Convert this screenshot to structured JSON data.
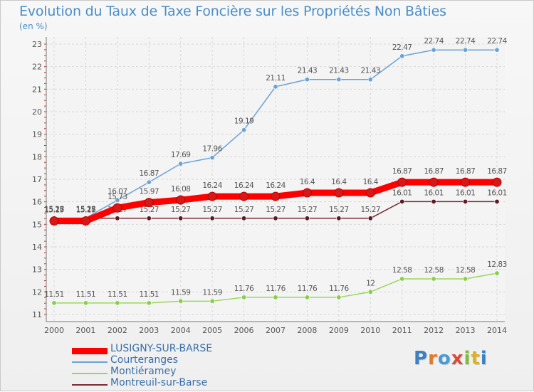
{
  "header": {
    "title": "Evolution du Taux de Taxe Foncière sur les Propriétés Non Bâties",
    "subtitle": "(en %)"
  },
  "brand": {
    "logo_text": "Proxiti",
    "colors": [
      "#3b7fc4",
      "#e07a2a",
      "#4a9ad6",
      "#d94a3a",
      "#7cbf3a",
      "#e0b020",
      "#3b7fc4"
    ]
  },
  "chart_data": {
    "type": "line",
    "x": [
      2000,
      2001,
      2002,
      2003,
      2004,
      2005,
      2006,
      2007,
      2008,
      2009,
      2010,
      2011,
      2012,
      2013,
      2014
    ],
    "ylim": [
      11,
      23
    ],
    "y_ticks": [
      11,
      12,
      13,
      14,
      15,
      16,
      17,
      18,
      19,
      20,
      21,
      22,
      23
    ],
    "grid": true,
    "legend_position": "bottom-left",
    "series": [
      {
        "name": "LUSIGNY-SUR-BARSE",
        "color": "#ff0000",
        "marker": "#d81818",
        "thick": true,
        "values": [
          15.15,
          15.15,
          15.73,
          15.97,
          16.08,
          16.24,
          16.24,
          16.24,
          16.4,
          16.4,
          16.4,
          16.87,
          16.87,
          16.87,
          16.87
        ],
        "labels": [
          "15.15",
          "15.15",
          "15.73",
          "15.97",
          "16.08",
          "16.24",
          "16.24",
          "16.24",
          "16.4",
          "16.4",
          "16.4",
          "16.87",
          "16.87",
          "16.87",
          "16.87"
        ]
      },
      {
        "name": "Courteranges",
        "color": "#6ba3d6",
        "marker": "#6ba3d6",
        "thick": false,
        "values": [
          15.28,
          15.28,
          16.07,
          16.87,
          17.69,
          17.96,
          19.19,
          21.11,
          21.43,
          21.43,
          21.43,
          22.47,
          22.74,
          22.74,
          22.74
        ],
        "labels": [
          "15.28",
          "15.28",
          "16.07",
          "16.87",
          "17.69",
          "17.96",
          "19.19",
          "21.11",
          "21.43",
          "21.43",
          "21.43",
          "22.47",
          "22.74",
          "22.74",
          "22.74"
        ]
      },
      {
        "name": "Montiéramey",
        "color": "#99d65a",
        "marker": "#8acd4a",
        "thick": false,
        "values": [
          11.51,
          11.51,
          11.51,
          11.51,
          11.59,
          11.59,
          11.76,
          11.76,
          11.76,
          11.76,
          12,
          12.58,
          12.58,
          12.58,
          12.83
        ],
        "labels": [
          "11.51",
          "11.51",
          "11.51",
          "11.51",
          "11.59",
          "11.59",
          "11.76",
          "11.76",
          "11.76",
          "11.76",
          "12",
          "12.58",
          "12.58",
          "12.58",
          "12.83"
        ]
      },
      {
        "name": "Montreuil-sur-Barse",
        "color": "#7a2a32",
        "marker": "#5e1a22",
        "thick": false,
        "values": [
          15.27,
          15.27,
          15.27,
          15.27,
          15.27,
          15.27,
          15.27,
          15.27,
          15.27,
          15.27,
          15.27,
          16.01,
          16.01,
          16.01,
          16.01
        ],
        "labels": [
          "15.27",
          "15.27",
          "15.27",
          "15.27",
          "15.27",
          "15.27",
          "15.27",
          "15.27",
          "15.27",
          "15.27",
          "15.27",
          "16.01",
          "16.01",
          "16.01",
          "16.01"
        ]
      }
    ]
  }
}
